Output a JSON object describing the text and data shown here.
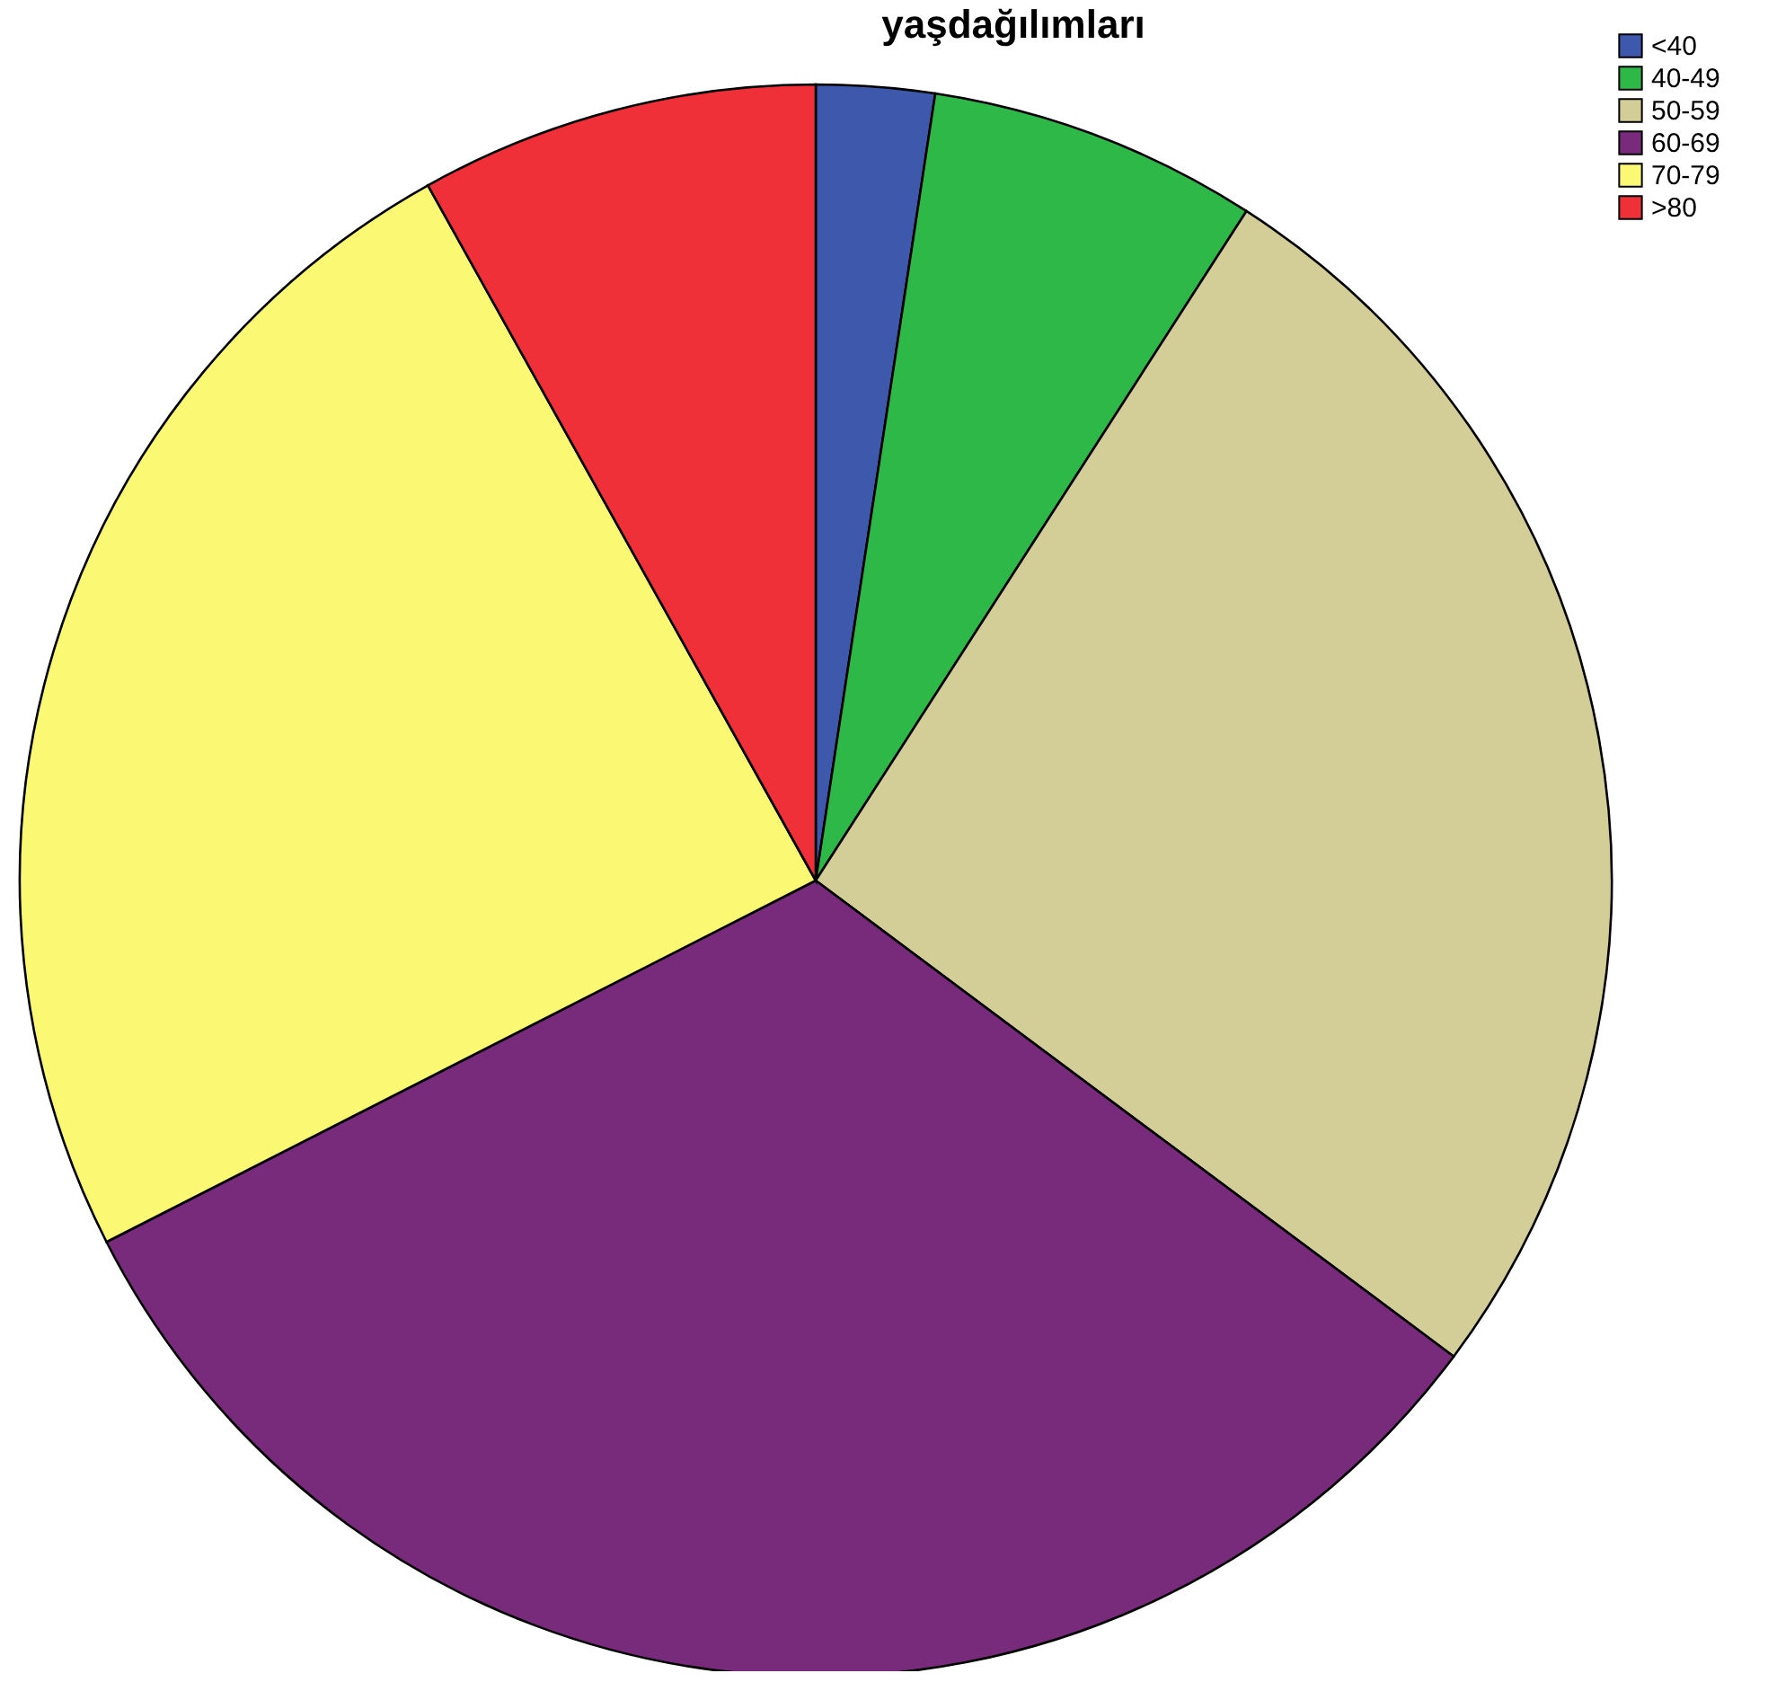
{
  "chart_data": {
    "type": "pie",
    "title": "yaşdağılımları",
    "categories": [
      "<40",
      "40-49",
      "50-59",
      "60-69",
      "70-79",
      ">80"
    ],
    "values": [
      2.4,
      6.7,
      26.1,
      32.3,
      24.4,
      8.1
    ],
    "colors": [
      "#3e58ac",
      "#2eb848",
      "#d3ce97",
      "#782a7b",
      "#fbf873",
      "#ef3038"
    ],
    "legend": "top right"
  }
}
